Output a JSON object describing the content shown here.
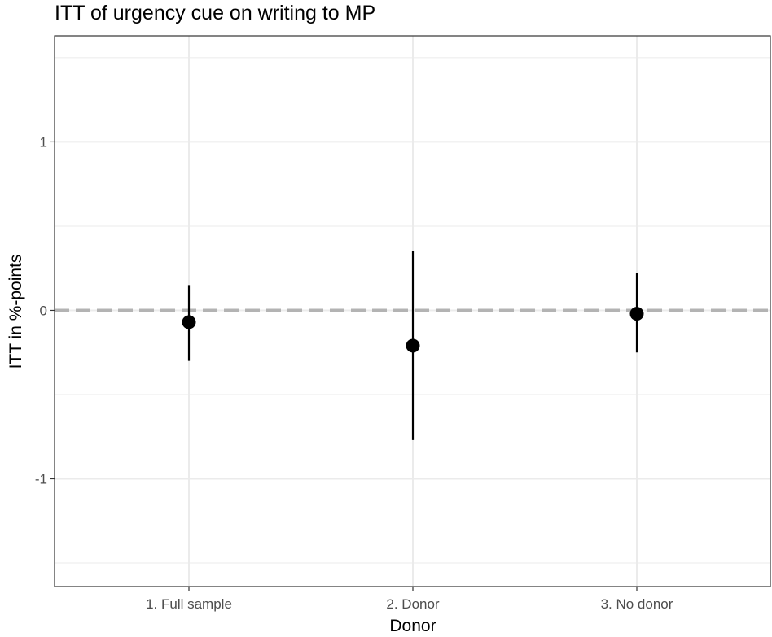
{
  "chart_data": {
    "type": "scatter",
    "title": "ITT of urgency cue on writing to MP",
    "xlabel": "Donor",
    "ylabel": "ITT in %-points",
    "categories": [
      "1. Full sample",
      "2. Donor",
      "3. No donor"
    ],
    "y_ticks": [
      {
        "value": 1,
        "label": "1"
      },
      {
        "value": 0,
        "label": "0"
      },
      {
        "value": -1,
        "label": "-1"
      }
    ],
    "ylim": [
      -1.64,
      1.63
    ],
    "minor_grid_y": [
      1.5,
      0.5,
      -0.5,
      -1.5
    ],
    "grid": true,
    "reference_line": {
      "y": 0,
      "style": "dashed",
      "color": "#b3b3b3"
    },
    "points": [
      {
        "category": "1. Full sample",
        "estimate": -0.07,
        "lower": -0.3,
        "upper": 0.15
      },
      {
        "category": "2. Donor",
        "estimate": -0.21,
        "lower": -0.77,
        "upper": 0.35
      },
      {
        "category": "3. No donor",
        "estimate": -0.02,
        "lower": -0.25,
        "upper": 0.22
      }
    ],
    "colors": {
      "point": "#000000",
      "grid": "#ebebeb",
      "panel_border": "#333333"
    }
  }
}
